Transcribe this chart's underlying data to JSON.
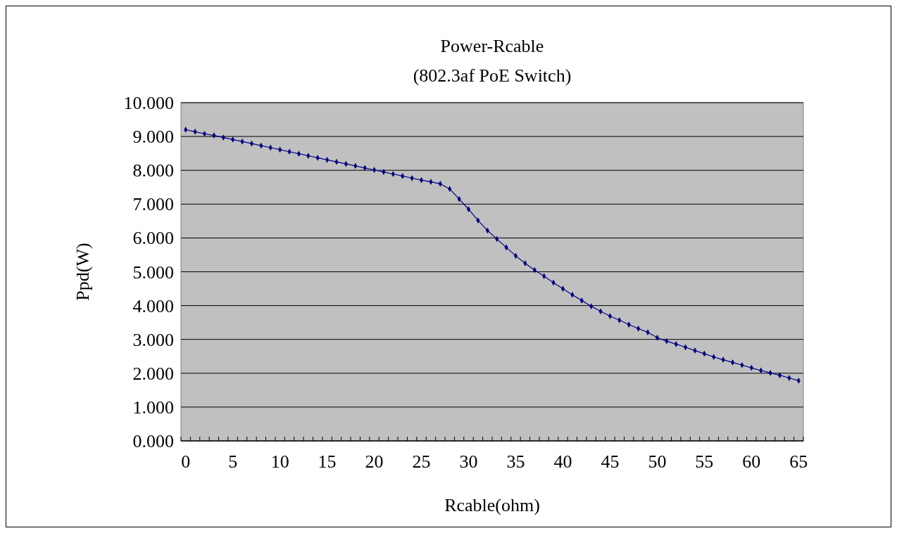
{
  "chart_data": {
    "type": "line",
    "title": "Power-Rcable",
    "subtitle": "(802.3af PoE Switch)",
    "xlabel": "Rcable(ohm)",
    "ylabel": "Ppd(W)",
    "categories": [
      "0",
      null,
      null,
      null,
      null,
      "5",
      null,
      null,
      null,
      null,
      "10",
      null,
      null,
      null,
      null,
      "15",
      null,
      null,
      null,
      null,
      "20",
      null,
      null,
      null,
      null,
      "25",
      null,
      null,
      null,
      null,
      "30",
      null,
      null,
      null,
      null,
      "35",
      null,
      null,
      null,
      null,
      "40",
      null,
      null,
      null,
      null,
      "45",
      null,
      null,
      null,
      null,
      "50",
      null,
      null,
      null,
      null,
      "55",
      null,
      null,
      null,
      null,
      "60",
      null,
      null,
      null,
      null,
      "65"
    ],
    "series": [
      {
        "color": "#000080",
        "values": [
          9.2,
          9.14,
          9.08,
          9.03,
          8.97,
          8.91,
          8.85,
          8.79,
          8.73,
          8.67,
          8.61,
          8.55,
          8.49,
          8.43,
          8.37,
          8.31,
          8.25,
          8.19,
          8.13,
          8.07,
          8.01,
          7.95,
          7.89,
          7.83,
          7.77,
          7.71,
          7.66,
          7.6,
          7.45,
          7.15,
          6.85,
          6.52,
          6.22,
          5.97,
          5.72,
          5.47,
          5.25,
          5.05,
          4.87,
          4.68,
          4.5,
          4.32,
          4.15,
          3.98,
          3.83,
          3.69,
          3.57,
          3.44,
          3.32,
          3.21,
          3.05,
          2.95,
          2.86,
          2.77,
          2.67,
          2.58,
          2.48,
          2.4,
          2.32,
          2.24,
          2.16,
          2.08,
          2.01,
          1.94,
          1.86,
          1.78
        ]
      }
    ],
    "ylim": [
      0,
      10
    ],
    "yticks": [
      {
        "value": 0,
        "label": "0.000"
      },
      {
        "value": 1,
        "label": "1.000"
      },
      {
        "value": 2,
        "label": "2.000"
      },
      {
        "value": 3,
        "label": "3.000"
      },
      {
        "value": 4,
        "label": "4.000"
      },
      {
        "value": 5,
        "label": "5.000"
      },
      {
        "value": 6,
        "label": "6.000"
      },
      {
        "value": 7,
        "label": "7.000"
      },
      {
        "value": 8,
        "label": "8.000"
      },
      {
        "value": 9,
        "label": "9.000"
      },
      {
        "value": 10,
        "label": "10.000"
      }
    ],
    "grid": "y",
    "marker": "diamond",
    "line_style": "solid"
  }
}
